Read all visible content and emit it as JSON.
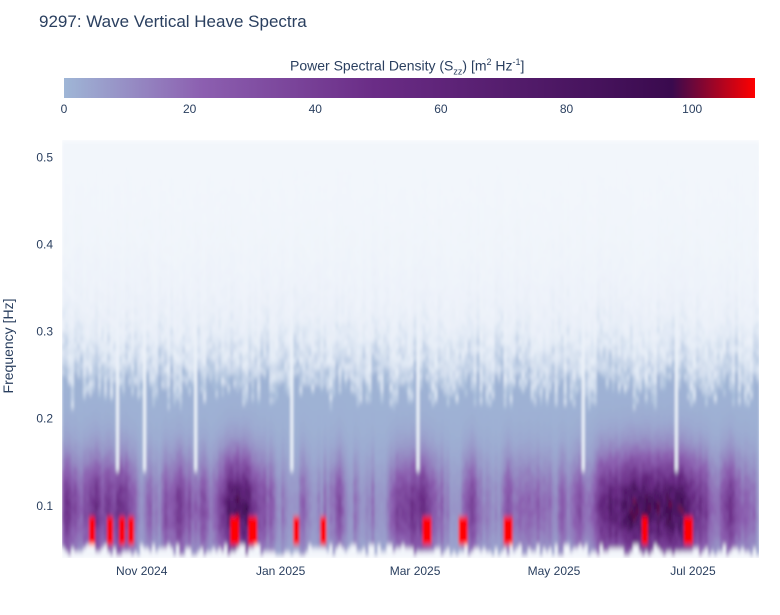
{
  "chart_data": {
    "type": "heatmap",
    "title": "9297: Wave Vertical Heave Spectra",
    "colorbar": {
      "title_prefix": "Power Spectral Density (S",
      "title_sub": "zz",
      "title_mid": ") [m",
      "title_sup1": "2",
      "title_mid2": " Hz",
      "title_sup2": "-1",
      "title_suffix": "]",
      "range": [
        0,
        110
      ],
      "ticks": [
        "0",
        "20",
        "40",
        "60",
        "80",
        "100"
      ],
      "tick_values": [
        0,
        20,
        40,
        60,
        80,
        100
      ],
      "colors": [
        "#9fb6d6",
        "#8c5fb0",
        "#6a2c86",
        "#3a0a4e",
        "#ff0000"
      ]
    },
    "ylabel": "Frequency [Hz]",
    "ylim": [
      0.04,
      0.52
    ],
    "y_ticks": [
      "0.1",
      "0.2",
      "0.3",
      "0.4",
      "0.5"
    ],
    "y_tick_values": [
      0.1,
      0.2,
      0.3,
      0.4,
      0.5
    ],
    "xlim": [
      "2024-09-27",
      "2025-07-30"
    ],
    "x_ticks": [
      "Nov 2024",
      "Jan 2025",
      "Mar 2025",
      "May 2025",
      "Jul 2025"
    ],
    "x_tick_values": [
      "2024-11-01",
      "2025-01-01",
      "2025-03-01",
      "2025-05-01",
      "2025-07-01"
    ],
    "energy_band_hz": [
      0.05,
      0.22
    ],
    "peak_band_hz": [
      0.06,
      0.15
    ],
    "high_energy_events": [
      "2024-10-10",
      "2024-10-18",
      "2024-10-23",
      "2024-10-27",
      "2024-12-12",
      "2024-12-20",
      "2025-01-08",
      "2025-01-20",
      "2025-03-06",
      "2025-03-22",
      "2025-04-11",
      "2025-06-10",
      "2025-06-29"
    ]
  }
}
